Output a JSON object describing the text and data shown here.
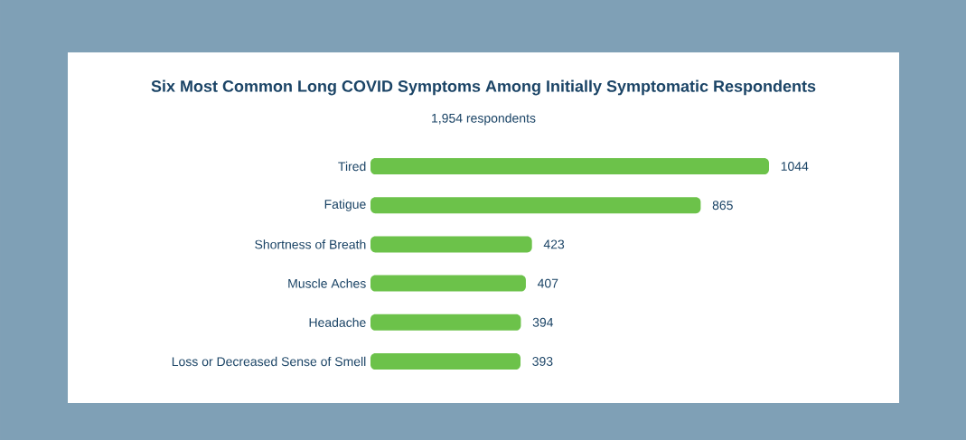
{
  "chart_data": {
    "type": "bar",
    "orientation": "horizontal",
    "title": "Six Most Common Long COVID Symptoms Among Initially Symptomatic Respondents",
    "subtitle": "1,954 respondents",
    "categories": [
      "Tired",
      "Fatigue",
      "Shortness of Breath",
      "Muscle Aches",
      "Headache",
      "Loss or Decreased Sense of Smell"
    ],
    "values": [
      1044,
      865,
      423,
      407,
      394,
      393
    ],
    "color": "#6cc24a",
    "data_labels": true
  }
}
